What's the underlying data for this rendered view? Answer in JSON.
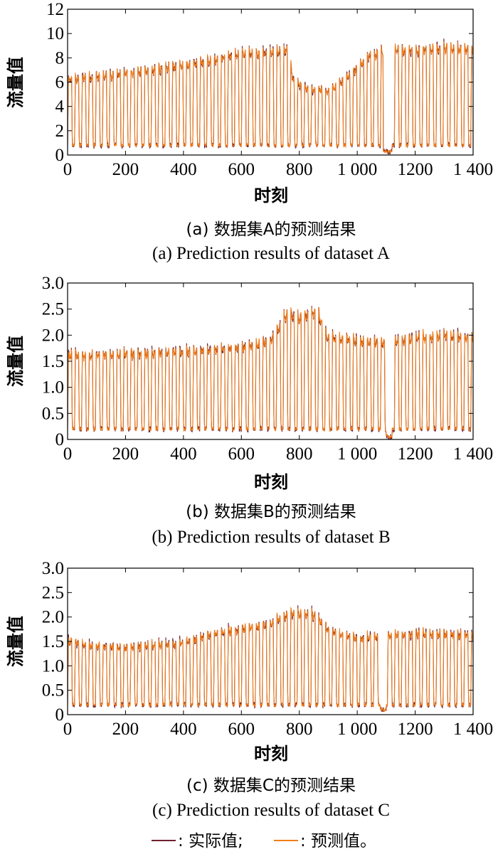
{
  "chart_data": [
    {
      "type": "line",
      "panel": "a",
      "title_cn": "(a) 数据集A的预测结果",
      "title_en": "(a) Prediction results of dataset A",
      "xlabel": "时刻",
      "ylabel": "流量值",
      "xlim": [
        0,
        1400
      ],
      "ylim": [
        0,
        12
      ],
      "xticks": [
        "0",
        "200",
        "400",
        "600",
        "800",
        "1 000",
        "1200",
        "1 400"
      ],
      "yticks": [
        "0",
        "2",
        "4",
        "6",
        "8",
        "10",
        "12"
      ],
      "period": 24,
      "baseline": 0.8,
      "peak_profile_x": [
        0,
        60,
        120,
        300,
        500,
        560,
        700,
        760,
        780,
        840,
        900,
        960,
        1040,
        1100,
        1120,
        1200,
        1300,
        1400
      ],
      "peak_profile_y": [
        6.5,
        6.7,
        6.8,
        7.4,
        8.2,
        8.6,
        8.9,
        9.1,
        6.5,
        5.6,
        5.6,
        6.6,
        8.6,
        9.0,
        9.2,
        9.0,
        9.3,
        9.1
      ],
      "anomalies": [
        {
          "x": [
            1090,
            1120
          ],
          "y": 0.3
        }
      ],
      "series": [
        {
          "name": "实际值",
          "color": "#6e1f2c"
        },
        {
          "name": "预测值",
          "color": "#f07d1a"
        }
      ]
    },
    {
      "type": "line",
      "panel": "b",
      "title_cn": "(b) 数据集B的预测结果",
      "title_en": "(b) Prediction results of dataset B",
      "xlabel": "时刻",
      "ylabel": "流量值",
      "xlim": [
        0,
        1400
      ],
      "ylim": [
        0,
        3.0
      ],
      "xticks": [
        "0",
        "200",
        "400",
        "600",
        "800",
        "1 000",
        "1200",
        "1 400"
      ],
      "yticks": [
        "0",
        "0.5",
        "1.0",
        "1.5",
        "2.0",
        "2.5",
        "3.0"
      ],
      "period": 24,
      "baseline": 0.2,
      "peak_profile_x": [
        0,
        100,
        300,
        500,
        640,
        700,
        760,
        800,
        860,
        900,
        1000,
        1100,
        1200,
        1300,
        1400
      ],
      "peak_profile_y": [
        1.7,
        1.7,
        1.75,
        1.8,
        1.9,
        2.0,
        2.55,
        2.45,
        2.6,
        2.05,
        2.0,
        1.95,
        2.05,
        2.1,
        2.05
      ],
      "anomalies": [
        {
          "x": [
            1100,
            1120
          ],
          "y": 0.05
        }
      ],
      "series": [
        {
          "name": "实际值",
          "color": "#6e1f2c"
        },
        {
          "name": "预测值",
          "color": "#f07d1a"
        }
      ]
    },
    {
      "type": "line",
      "panel": "c",
      "title_cn": "(c) 数据集C的预测结果",
      "title_en": "(c) Prediction results of dataset C",
      "xlabel": "时刻",
      "ylabel": "流量值",
      "xlim": [
        0,
        1400
      ],
      "ylim": [
        0,
        3.0
      ],
      "xticks": [
        "0",
        "200",
        "400",
        "600",
        "800",
        "1 000",
        "1200",
        "1 400"
      ],
      "yticks": [
        "0",
        "0.5",
        "1.0",
        "1.5",
        "2.0",
        "2.5",
        "3.0"
      ],
      "period": 24,
      "baseline": 0.2,
      "peak_profile_x": [
        0,
        60,
        200,
        400,
        500,
        600,
        700,
        770,
        860,
        900,
        1000,
        1100,
        1200,
        1300,
        1400
      ],
      "peak_profile_y": [
        1.6,
        1.5,
        1.45,
        1.55,
        1.75,
        1.85,
        1.95,
        2.2,
        2.15,
        1.8,
        1.65,
        1.7,
        1.75,
        1.75,
        1.7
      ],
      "anomalies": [
        {
          "x": [
            1080,
            1100
          ],
          "y": 0.1
        }
      ],
      "series": [
        {
          "name": "实际值",
          "color": "#6e1f2c"
        },
        {
          "name": "预测值",
          "color": "#f07d1a"
        }
      ]
    }
  ],
  "legend": {
    "actual_label": ": 实际值;",
    "predicted_label": ": 预测值。"
  }
}
